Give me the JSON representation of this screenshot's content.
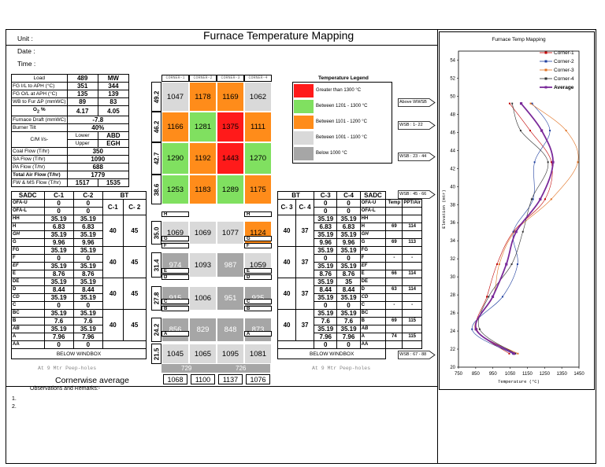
{
  "header": {
    "title": "Furnace Temperature Mapping",
    "unit_label": "Unit :",
    "date_label": "Date :",
    "time_label": "Time :"
  },
  "params": {
    "load": {
      "label": "Load",
      "value": "489",
      "unit": "MW"
    },
    "fg_il": {
      "label": "FG I/L to APH",
      "unit": "(°C)",
      "a": "351",
      "b": "344"
    },
    "fg_ol": {
      "label": "FG O/L at APH",
      "unit": "(°C)",
      "a": "135",
      "b": "139"
    },
    "wb": {
      "label": "WB to Fur ΔP (mmWC)",
      "a": "89",
      "b": "83"
    },
    "o2": {
      "label": "O",
      "sub": "2",
      "unit": "%",
      "a": "4.17",
      "b": "4.05"
    },
    "draft": {
      "label": "Furnace Draft (mmWC)",
      "value": "-7.8"
    },
    "tilt": {
      "label": "Burner Tilt",
      "value": "40%"
    },
    "cm": {
      "label": "C/M I/s-",
      "lower_label": "Lower",
      "lower": "ABD",
      "upper_label": "Upper",
      "upper": "EGH"
    },
    "coal": {
      "label": "Coal Flow",
      "unit": "(T/hr)",
      "value": "350"
    },
    "sa": {
      "label": "SA Flow",
      "unit": "(T/hr)",
      "value": "1090"
    },
    "pa": {
      "label": "PA Flow",
      "unit": "(T/hr)",
      "value": "688"
    },
    "air": {
      "label": "Total Air Flow",
      "unit": "(T/hr)",
      "value": "1779"
    },
    "fw": {
      "label": "FW & MS Flow",
      "unit": "(T/hr)",
      "a": "1517",
      "b": "1535"
    }
  },
  "corners": [
    "CORNER-1",
    "CORNER-2",
    "CORNER-3",
    "CORNER-4"
  ],
  "grid_rows": [
    {
      "elev": "49.2",
      "values": [
        "1047",
        "1178",
        "1169",
        "1062"
      ],
      "colors": [
        "#d9d9d9",
        "#ff8c1a",
        "#ff8c1a",
        "#d9d9d9"
      ]
    },
    {
      "elev": "46.2",
      "values": [
        "1166",
        "1281",
        "1375",
        "1111"
      ],
      "colors": [
        "#ff8c1a",
        "#80e060",
        "#ff1a1a",
        "#ff8c1a"
      ]
    },
    {
      "elev": "42.7",
      "values": [
        "1290",
        "1192",
        "1443",
        "1270"
      ],
      "colors": [
        "#80e060",
        "#ff8c1a",
        "#ff1a1a",
        "#80e060"
      ]
    },
    {
      "elev": "38.6",
      "values": [
        "1253",
        "1183",
        "1289",
        "1175"
      ],
      "colors": [
        "#80e060",
        "#ff8c1a",
        "#80e060",
        "#ff8c1a"
      ]
    },
    {
      "elev": "35.0",
      "values": [
        "1069",
        "1069",
        "1077",
        "1124"
      ],
      "colors": [
        "#d9d9d9",
        "#d9d9d9",
        "#d9d9d9",
        "#ff8c1a"
      ]
    },
    {
      "elev": "31.4",
      "values": [
        "974",
        "1093",
        "987",
        "1059"
      ],
      "colors": [
        "#a6a6a6",
        "#d9d9d9",
        "#a6a6a6",
        "#d9d9d9"
      ]
    },
    {
      "elev": "27.8",
      "values": [
        "915",
        "1006",
        "951",
        "925"
      ],
      "colors": [
        "#a6a6a6",
        "#d9d9d9",
        "#a6a6a6",
        "#a6a6a6"
      ]
    },
    {
      "elev": "24.2",
      "values": [
        "856",
        "829",
        "848",
        "873"
      ],
      "colors": [
        "#a6a6a6",
        "#a6a6a6",
        "#a6a6a6",
        "#a6a6a6"
      ]
    },
    {
      "elev": "21.5",
      "values": [
        "1045",
        "1065",
        "1095",
        "1081"
      ],
      "colors": [
        "#d9d9d9",
        "#d9d9d9",
        "#d9d9d9",
        "#d9d9d9"
      ]
    }
  ],
  "levels": {
    "left": [
      "H",
      "G",
      "F",
      "E",
      "D",
      "C",
      "B",
      "A"
    ],
    "right": [
      "H",
      "G",
      "F",
      "E",
      "D",
      "C",
      "B",
      "A"
    ]
  },
  "peep": {
    "label": "At 9 Mtr Peep-holes",
    "v1": "729",
    "v2": "726"
  },
  "cornerwise": {
    "label": "Cornerwise average",
    "values": [
      "1068",
      "1100",
      "1137",
      "1076"
    ]
  },
  "remarks": {
    "label": "Observations and Remarks:-",
    "l1": "1.",
    "l2": "2."
  },
  "legend": {
    "title": "Temperature Legend",
    "items": [
      {
        "label": "Greater than 1300 °C",
        "color": "#ff1a1a"
      },
      {
        "label": "Between 1201 - 1300 °C",
        "color": "#80e060"
      },
      {
        "label": "Between 1101 - 1200 °C",
        "color": "#ff8c1a"
      },
      {
        "label": "Between 1001 - 1100 °C",
        "color": "#d9d9d9"
      },
      {
        "label": "Below 1000 °C",
        "color": "#a6a6a6"
      }
    ]
  },
  "arrows": [
    "Above WWSB",
    "WSB : 1- 22",
    "WSB : 23 - 44",
    "WSB : 45 - 66",
    "WSB : 67 - 88"
  ],
  "sadc_left": {
    "headers": [
      "SADC",
      "C-1",
      "C-2",
      "BT"
    ],
    "bt_headers": [
      "C-1",
      "C- 2"
    ],
    "rows": [
      [
        "OFA-U",
        "0",
        "0"
      ],
      [
        "OFA-L",
        "0",
        "0"
      ],
      [
        "HH",
        "35.19",
        "35.19"
      ],
      [
        "H",
        "6.83",
        "6.83"
      ],
      [
        "GH",
        "35.19",
        "35.19"
      ],
      [
        "G",
        "9.96",
        "9.96"
      ],
      [
        "FG",
        "35.19",
        "35.19"
      ],
      [
        "F",
        "0",
        "0"
      ],
      [
        "EF",
        "35.19",
        "35.19"
      ],
      [
        "E",
        "8.76",
        "8.76"
      ],
      [
        "DE",
        "35.19",
        "35.19"
      ],
      [
        "D",
        "8.44",
        "8.44"
      ],
      [
        "CD",
        "35.19",
        "35.19"
      ],
      [
        "C",
        "0",
        "0"
      ],
      [
        "BC",
        "35.19",
        "35.19"
      ],
      [
        "B",
        "7.6",
        "7.6"
      ],
      [
        "AB",
        "35.19",
        "35.19"
      ],
      [
        "A",
        "7.96",
        "7.96"
      ],
      [
        "AA",
        "0",
        "0"
      ]
    ],
    "bt_values": [
      [
        "40",
        "45"
      ],
      [
        "40",
        "45"
      ],
      [
        "40",
        "45"
      ],
      [
        "40",
        "45"
      ]
    ],
    "below": "BELOW WINDBOX"
  },
  "sadc_right": {
    "headers": [
      "BT",
      "C-3",
      "C-4",
      "SADC"
    ],
    "bt_headers": [
      "C- 3",
      "C- 4"
    ],
    "extra_headers": [
      "Temp",
      "PPT/Air"
    ],
    "rows": [
      [
        "0",
        "0",
        "OFA-U"
      ],
      [
        "0",
        "0",
        "OFA-L"
      ],
      [
        "35.19",
        "35.19",
        "HH"
      ],
      [
        "6.83",
        "6.83",
        "H"
      ],
      [
        "35.19",
        "35.19",
        "GH"
      ],
      [
        "9.96",
        "9.96",
        "G"
      ],
      [
        "35.19",
        "35.19",
        "FG"
      ],
      [
        "0",
        "0",
        "F"
      ],
      [
        "35.19",
        "35.19",
        "EF"
      ],
      [
        "8.76",
        "8.76",
        "E"
      ],
      [
        "35.19",
        "35",
        "DE"
      ],
      [
        "8.44",
        "8.44",
        "D"
      ],
      [
        "35.19",
        "35.19",
        "CD"
      ],
      [
        "0",
        "0",
        "C"
      ],
      [
        "35.19",
        "35.19",
        "BC"
      ],
      [
        "7.6",
        "7.6",
        "B"
      ],
      [
        "35.19",
        "35.19",
        "AB"
      ],
      [
        "7.96",
        "7.96",
        "A"
      ],
      [
        "0",
        "0",
        "AA"
      ]
    ],
    "bt_values": [
      [
        "40",
        "37"
      ],
      [
        "40",
        "37"
      ],
      [
        "40",
        "37"
      ],
      [
        "40",
        "37"
      ]
    ],
    "extra": {
      "H": [
        "69",
        "114"
      ],
      "G": [
        "69",
        "113"
      ],
      "F": [
        "-",
        "-"
      ],
      "E": [
        "66",
        "114"
      ],
      "D": [
        "63",
        "114"
      ],
      "C": [
        "-",
        "-"
      ],
      "B": [
        "69",
        "115"
      ],
      "A": [
        "74",
        "115"
      ]
    },
    "below": "BELOW WINDBOX"
  },
  "chart_data": {
    "type": "line",
    "title": "Furnace Temp Mapping",
    "xlabel": "Temperature (°C)",
    "ylabel": "Elevation (mtr)",
    "xlim": [
      750,
      1450
    ],
    "ylim": [
      20,
      55
    ],
    "xticks": [
      "750",
      "850",
      "950",
      "1050",
      "1150",
      "1250",
      "1350",
      "1450"
    ],
    "yticks": [
      "20",
      "22",
      "24",
      "26",
      "28",
      "30",
      "32",
      "34",
      "36",
      "38",
      "40",
      "42",
      "44",
      "46",
      "48",
      "50",
      "52",
      "54"
    ],
    "elevations": [
      21.5,
      24.2,
      27.8,
      31.4,
      35.0,
      38.6,
      42.7,
      46.2,
      49.2
    ],
    "legend_position": "top-right",
    "series": [
      {
        "name": "Corner-1",
        "color": "#c00000",
        "values": [
          1045,
          856,
          915,
          974,
          1069,
          1253,
          1290,
          1166,
          1047
        ]
      },
      {
        "name": "Corner-2",
        "color": "#1f3f9f",
        "values": [
          1065,
          829,
          1006,
          1093,
          1069,
          1183,
          1192,
          1281,
          1178
        ]
      },
      {
        "name": "Corner-3",
        "color": "#e07020",
        "values": [
          1095,
          848,
          951,
          987,
          1077,
          1289,
          1443,
          1375,
          1169
        ]
      },
      {
        "name": "Corner-4",
        "color": "#303030",
        "values": [
          1081,
          873,
          925,
          1059,
          1124,
          1175,
          1270,
          1111,
          1062
        ]
      },
      {
        "name": "Average",
        "color": "#7a2a9a",
        "values": [
          1072,
          852,
          949,
          1028,
          1085,
          1225,
          1299,
          1233,
          1114
        ]
      }
    ]
  }
}
